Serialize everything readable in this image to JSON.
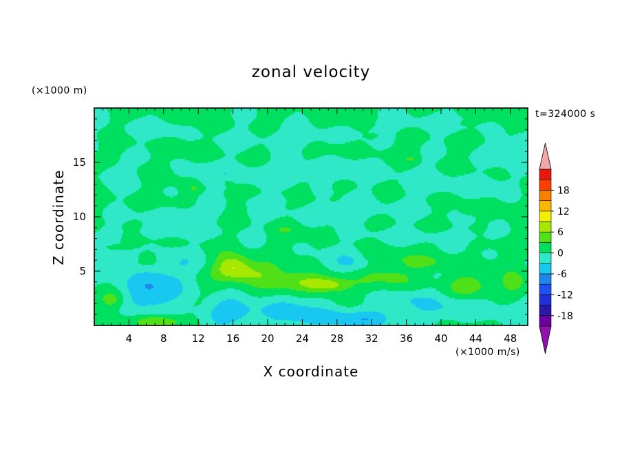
{
  "chart_data": {
    "type": "heatmap",
    "title": "zonal velocity",
    "xlabel": "X coordinate",
    "ylabel": "Z coordinate",
    "x_unit": "(×1000 m/s)",
    "y_unit": "(×1000 m)",
    "time_label": "t=324000 s",
    "xlim": [
      0,
      50
    ],
    "ylim": [
      0,
      20
    ],
    "xticks": [
      4,
      8,
      12,
      16,
      20,
      24,
      28,
      32,
      36,
      40,
      44,
      48
    ],
    "yticks": [
      5,
      10,
      15
    ],
    "colorbar": {
      "levels": [
        -21,
        -18,
        -15,
        -12,
        -9,
        -6,
        -3,
        0,
        3,
        6,
        9,
        12,
        15,
        18,
        21
      ],
      "tick_labels": [
        "18",
        "12",
        "6",
        "0",
        "-6",
        "-12",
        "-18"
      ],
      "tick_values": [
        18,
        12,
        6,
        0,
        -6,
        -12,
        -18
      ],
      "colors": [
        "#6c00a0",
        "#2a17a8",
        "#2030d8",
        "#2050f0",
        "#1e88e8",
        "#18c8f0",
        "#2ee8c8",
        "#00e060",
        "#50e018",
        "#a8e800",
        "#f0f000",
        "#f8b800",
        "#f88000",
        "#f84000",
        "#e81810"
      ],
      "under_color": "#9010b0",
      "over_color": "#f0a8a8"
    },
    "background_value": 0.5,
    "features": [
      {
        "x": 6.5,
        "z": 3.3,
        "rx": 3.8,
        "rz": 1.9,
        "amp": -6.5
      },
      {
        "x": 4.2,
        "z": 6.2,
        "rx": 2.0,
        "rz": 0.9,
        "amp": -2.5
      },
      {
        "x": 10.0,
        "z": 5.8,
        "rx": 3.0,
        "rz": 1.2,
        "amp": -2.5
      },
      {
        "x": 15.5,
        "z": 1.2,
        "rx": 3.5,
        "rz": 1.2,
        "amp": -5.0
      },
      {
        "x": 22.5,
        "z": 1.3,
        "rx": 4.5,
        "rz": 1.3,
        "amp": -4.0
      },
      {
        "x": 30.0,
        "z": 0.6,
        "rx": 6.0,
        "rz": 0.9,
        "amp": -5.5
      },
      {
        "x": 30.0,
        "z": 5.9,
        "rx": 3.0,
        "rz": 1.1,
        "amp": -5.0
      },
      {
        "x": 42.0,
        "z": 1.8,
        "rx": 6.0,
        "rz": 1.2,
        "amp": -3.0
      },
      {
        "x": 36.0,
        "z": 2.5,
        "rx": 3.0,
        "rz": 1.0,
        "amp": -3.0
      },
      {
        "x": 16.0,
        "z": 5.5,
        "rx": 2.0,
        "rz": 1.1,
        "amp": 7.0
      },
      {
        "x": 18.0,
        "z": 4.8,
        "rx": 3.5,
        "rz": 1.0,
        "amp": 5.0
      },
      {
        "x": 24.0,
        "z": 4.0,
        "rx": 3.8,
        "rz": 0.9,
        "amp": 5.5
      },
      {
        "x": 27.0,
        "z": 3.7,
        "rx": 2.2,
        "rz": 0.6,
        "amp": 6.0
      },
      {
        "x": 33.5,
        "z": 4.6,
        "rx": 3.0,
        "rz": 1.4,
        "amp": 4.0
      },
      {
        "x": 43.0,
        "z": 3.6,
        "rx": 2.5,
        "rz": 1.1,
        "amp": 5.0
      },
      {
        "x": 48.5,
        "z": 3.8,
        "rx": 1.6,
        "rz": 1.2,
        "amp": 4.0
      },
      {
        "x": 2.0,
        "z": 2.4,
        "rx": 1.5,
        "rz": 0.8,
        "amp": 4.5
      },
      {
        "x": 7.5,
        "z": 0.4,
        "rx": 3.0,
        "rz": 0.6,
        "amp": 5.5
      },
      {
        "x": 6.0,
        "z": 6.1,
        "rx": 1.2,
        "rz": 0.7,
        "amp": 4.0
      },
      {
        "x": 33.0,
        "z": 6.3,
        "rx": 3.5,
        "rz": 0.8,
        "amp": 3.0
      },
      {
        "x": 38.5,
        "z": 5.8,
        "rx": 2.5,
        "rz": 0.6,
        "amp": 2.5
      },
      {
        "x": 16.0,
        "z": 13.8,
        "rx": 6.0,
        "rz": 1.1,
        "amp": -2.2
      },
      {
        "x": 27.0,
        "z": 14.2,
        "rx": 8.0,
        "rz": 1.0,
        "amp": -2.0
      },
      {
        "x": 41.0,
        "z": 13.0,
        "rx": 7.0,
        "rz": 1.0,
        "amp": -2.2
      },
      {
        "x": 10.0,
        "z": 10.2,
        "rx": 5.0,
        "rz": 0.8,
        "amp": -2.0
      },
      {
        "x": 30.0,
        "z": 10.5,
        "rx": 9.0,
        "rz": 0.9,
        "amp": -2.0
      },
      {
        "x": 22.0,
        "z": 17.2,
        "rx": 7.0,
        "rz": 0.9,
        "amp": -2.0
      },
      {
        "x": 6.0,
        "z": 18.0,
        "rx": 4.0,
        "rz": 0.8,
        "amp": -2.0
      },
      {
        "x": 38.0,
        "z": 18.5,
        "rx": 6.0,
        "rz": 0.8,
        "amp": -2.0
      },
      {
        "x": 9.0,
        "z": 8.6,
        "rx": 7.0,
        "rz": 0.7,
        "amp": -1.8
      },
      {
        "x": 38.0,
        "z": 8.2,
        "rx": 9.0,
        "rz": 0.7,
        "amp": -1.8
      },
      {
        "x": 47.0,
        "z": 16.0,
        "rx": 3.0,
        "rz": 1.0,
        "amp": -2.0
      },
      {
        "x": 2.0,
        "z": 14.0,
        "rx": 2.0,
        "rz": 1.5,
        "amp": -2.0
      },
      {
        "x": 20.0,
        "z": 11.5,
        "rx": 3.0,
        "rz": 0.5,
        "amp": -1.8
      },
      {
        "x": 11.5,
        "z": 12.6,
        "rx": 0.6,
        "rz": 0.25,
        "amp": 3.5
      },
      {
        "x": 15.5,
        "z": 13.1,
        "rx": 0.5,
        "rz": 0.25,
        "amp": 3.5
      },
      {
        "x": 43.5,
        "z": 10.5,
        "rx": 1.0,
        "rz": 0.25,
        "amp": 3.0
      },
      {
        "x": 22.0,
        "z": 8.8,
        "rx": 1.0,
        "rz": 0.25,
        "amp": 3.0
      },
      {
        "x": 43.0,
        "z": 18.6,
        "rx": 0.8,
        "rz": 0.2,
        "amp": 3.0
      },
      {
        "x": 32.0,
        "z": 17.4,
        "rx": 0.6,
        "rz": 0.2,
        "amp": 3.0
      },
      {
        "x": 36.5,
        "z": 15.3,
        "rx": 0.6,
        "rz": 0.2,
        "amp": 3.0
      },
      {
        "x": 3.0,
        "z": 7.2,
        "rx": 1.5,
        "rz": 0.2,
        "amp": 2.5
      }
    ]
  }
}
